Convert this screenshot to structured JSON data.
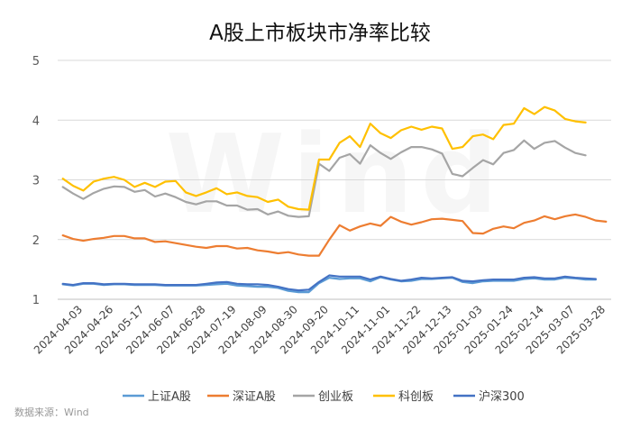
{
  "chart_data": {
    "type": "line",
    "title": "A股上市板块市净率比较",
    "source": "数据来源：Wind",
    "watermark": "Wind",
    "ylim": [
      1,
      5
    ],
    "yticks": [
      1,
      2,
      3,
      4,
      5
    ],
    "grid": "horizontal",
    "legend_position": "bottom",
    "xtick_labels": [
      "2024-04-03",
      "2024-04-26",
      "2024-05-17",
      "2024-06-07",
      "2024-06-28",
      "2024-07-19",
      "2024-08-09",
      "2024-08-30",
      "2024-09-20",
      "2024-10-11",
      "2024-11-01",
      "2024-11-22",
      "2024-12-13",
      "2025-01-03",
      "2025-01-24",
      "2025-02-14",
      "2025-03-07",
      "2025-03-28"
    ],
    "series": [
      {
        "name": "上证A股",
        "color": "#5B9BD5",
        "values": [
          1.25,
          1.23,
          1.26,
          1.26,
          1.24,
          1.25,
          1.25,
          1.24,
          1.24,
          1.24,
          1.23,
          1.23,
          1.23,
          1.23,
          1.24,
          1.25,
          1.26,
          1.23,
          1.22,
          1.21,
          1.21,
          1.19,
          1.14,
          1.12,
          1.12,
          1.27,
          1.36,
          1.34,
          1.35,
          1.35,
          1.3,
          1.37,
          1.33,
          1.3,
          1.31,
          1.34,
          1.34,
          1.35,
          1.36,
          1.29,
          1.27,
          1.3,
          1.31,
          1.31,
          1.31,
          1.34,
          1.35,
          1.33,
          1.33,
          1.36,
          1.35,
          1.33,
          1.33
        ]
      },
      {
        "name": "深证A股",
        "color": "#ED7D31",
        "values": [
          2.07,
          2.01,
          1.98,
          2.01,
          2.03,
          2.06,
          2.06,
          2.02,
          2.02,
          1.96,
          1.97,
          1.94,
          1.91,
          1.88,
          1.86,
          1.89,
          1.89,
          1.85,
          1.86,
          1.82,
          1.8,
          1.77,
          1.79,
          1.75,
          1.73,
          1.73,
          2.0,
          2.24,
          2.15,
          2.22,
          2.27,
          2.23,
          2.38,
          2.3,
          2.25,
          2.29,
          2.34,
          2.35,
          2.33,
          2.31,
          2.11,
          2.1,
          2.18,
          2.22,
          2.19,
          2.28,
          2.32,
          2.39,
          2.34,
          2.39,
          2.42,
          2.38,
          2.32,
          2.3
        ]
      },
      {
        "name": "创业板",
        "color": "#A5A5A5",
        "values": [
          2.88,
          2.77,
          2.68,
          2.78,
          2.85,
          2.89,
          2.88,
          2.8,
          2.83,
          2.72,
          2.77,
          2.71,
          2.63,
          2.59,
          2.64,
          2.64,
          2.57,
          2.57,
          2.5,
          2.51,
          2.42,
          2.47,
          2.4,
          2.38,
          2.39,
          3.27,
          3.15,
          3.37,
          3.43,
          3.27,
          3.58,
          3.45,
          3.35,
          3.46,
          3.55,
          3.55,
          3.51,
          3.44,
          3.1,
          3.06,
          3.2,
          3.33,
          3.26,
          3.45,
          3.5,
          3.66,
          3.52,
          3.62,
          3.65,
          3.54,
          3.45,
          3.41
        ]
      },
      {
        "name": "科创板",
        "color": "#FFC000",
        "values": [
          3.02,
          2.9,
          2.82,
          2.97,
          3.02,
          3.05,
          3.0,
          2.88,
          2.95,
          2.88,
          2.97,
          2.98,
          2.79,
          2.73,
          2.79,
          2.86,
          2.76,
          2.79,
          2.73,
          2.71,
          2.63,
          2.67,
          2.55,
          2.51,
          2.5,
          3.34,
          3.34,
          3.62,
          3.73,
          3.55,
          3.94,
          3.78,
          3.7,
          3.83,
          3.89,
          3.84,
          3.89,
          3.86,
          3.52,
          3.55,
          3.73,
          3.76,
          3.68,
          3.92,
          3.94,
          4.2,
          4.1,
          4.22,
          4.16,
          4.02,
          3.98,
          3.96
        ]
      },
      {
        "name": "沪深300",
        "color": "#4472C4",
        "values": [
          1.26,
          1.24,
          1.27,
          1.27,
          1.25,
          1.26,
          1.26,
          1.25,
          1.25,
          1.25,
          1.24,
          1.24,
          1.24,
          1.24,
          1.26,
          1.28,
          1.29,
          1.26,
          1.25,
          1.25,
          1.24,
          1.21,
          1.17,
          1.15,
          1.16,
          1.29,
          1.4,
          1.38,
          1.38,
          1.38,
          1.33,
          1.38,
          1.34,
          1.31,
          1.33,
          1.36,
          1.35,
          1.36,
          1.37,
          1.31,
          1.3,
          1.32,
          1.33,
          1.33,
          1.33,
          1.36,
          1.37,
          1.35,
          1.35,
          1.38,
          1.36,
          1.35,
          1.34
        ]
      }
    ]
  }
}
